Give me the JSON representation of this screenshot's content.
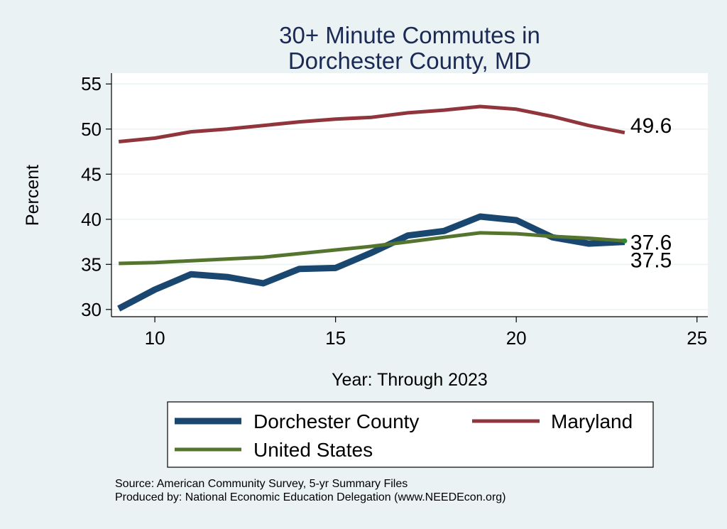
{
  "chart_data": {
    "type": "line",
    "title": [
      "30+ Minute Commutes in",
      "Dorchester County, MD"
    ],
    "xlabel": "Year: Through 2023",
    "ylabel": "Percent",
    "xlim": [
      8.8,
      25.3
    ],
    "ylim": [
      29.2,
      56.2
    ],
    "xticks": [
      10,
      15,
      20,
      25
    ],
    "yticks": [
      30,
      35,
      40,
      45,
      50,
      55
    ],
    "grid": true,
    "legend_position": "bottom",
    "colors": {
      "background": "#eaf2f3",
      "plot_background": "#ffffff",
      "grid": "#eaf2f3"
    },
    "series": [
      {
        "name": "Dorchester County",
        "color": "#1a476f",
        "x": [
          9,
          10,
          11,
          12,
          13,
          14,
          15,
          16,
          17,
          18,
          19,
          20,
          21,
          22,
          23
        ],
        "values": [
          30.1,
          32.2,
          33.9,
          33.6,
          32.9,
          34.5,
          34.6,
          36.3,
          38.2,
          38.7,
          40.3,
          39.9,
          38.0,
          37.3,
          37.5
        ],
        "end_label": "37.5"
      },
      {
        "name": "Maryland",
        "color": "#90353b",
        "x": [
          9,
          10,
          11,
          12,
          13,
          14,
          15,
          16,
          17,
          18,
          19,
          20,
          21,
          22,
          23
        ],
        "values": [
          48.6,
          49.0,
          49.7,
          50.0,
          50.4,
          50.8,
          51.1,
          51.3,
          51.8,
          52.1,
          52.5,
          52.2,
          51.4,
          50.4,
          49.6
        ],
        "end_label": "49.6"
      },
      {
        "name": "United States",
        "color": "#55752f",
        "x": [
          9,
          10,
          11,
          12,
          13,
          14,
          15,
          16,
          17,
          18,
          19,
          20,
          21,
          22,
          23
        ],
        "values": [
          35.1,
          35.2,
          35.4,
          35.6,
          35.8,
          36.2,
          36.6,
          37.0,
          37.5,
          38.0,
          38.5,
          38.4,
          38.1,
          37.9,
          37.6
        ],
        "end_label": "37.6"
      }
    ]
  },
  "footer": {
    "source": "Source: American Community Survey, 5-yr Summary Files",
    "produced_by": "Produced by: National Economic Education Delegation (www.NEEDEcon.org)"
  }
}
